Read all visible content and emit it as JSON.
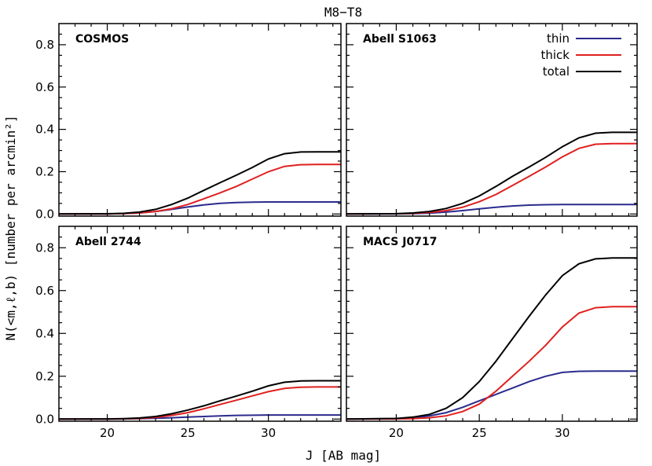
{
  "figure": {
    "title": "M8−T8",
    "xlabel": "J [AB mag]",
    "ylabel": "N(<m,ℓ,b) [number per arcmin²]"
  },
  "colors": {
    "thin": "#2b2b8f",
    "thick": "#e02020",
    "total": "#000000"
  },
  "chart_data": [
    {
      "type": "line",
      "title": "COSMOS",
      "xlim": [
        17,
        34.5
      ],
      "ylim": [
        -0.01,
        0.9
      ],
      "xticks": [
        20,
        25,
        30
      ],
      "yticks": [
        0.0,
        0.2,
        0.4,
        0.6,
        0.8
      ],
      "series": [
        {
          "name": "thin",
          "x": [
            17,
            20,
            21,
            22,
            23,
            24,
            25,
            26,
            27,
            28,
            29,
            30,
            31,
            32,
            33,
            34.5
          ],
          "y": [
            0,
            0.0005,
            0.002,
            0.005,
            0.012,
            0.022,
            0.033,
            0.043,
            0.05,
            0.054,
            0.056,
            0.057,
            0.057,
            0.057,
            0.057,
            0.057
          ]
        },
        {
          "name": "thick",
          "x": [
            17,
            20,
            21,
            22,
            23,
            24,
            25,
            26,
            27,
            28,
            29,
            30,
            31,
            32,
            33,
            34.5
          ],
          "y": [
            0,
            0.0005,
            0.002,
            0.005,
            0.012,
            0.025,
            0.045,
            0.072,
            0.1,
            0.13,
            0.165,
            0.2,
            0.225,
            0.233,
            0.234,
            0.234
          ]
        },
        {
          "name": "total",
          "x": [
            17,
            20,
            21,
            22,
            23,
            24,
            25,
            26,
            27,
            28,
            29,
            30,
            31,
            32,
            33,
            34.5
          ],
          "y": [
            0,
            0.001,
            0.003,
            0.009,
            0.022,
            0.045,
            0.075,
            0.112,
            0.148,
            0.183,
            0.22,
            0.26,
            0.285,
            0.293,
            0.294,
            0.294
          ]
        }
      ]
    },
    {
      "type": "line",
      "title": "Abell S1063",
      "xlim": [
        17,
        34.5
      ],
      "ylim": [
        -0.01,
        0.9
      ],
      "xticks": [
        20,
        25,
        30
      ],
      "yticks": [
        0.0,
        0.2,
        0.4,
        0.6,
        0.8
      ],
      "legend": {
        "position": "top-right",
        "entries": [
          "thin",
          "thick",
          "total"
        ]
      },
      "series": [
        {
          "name": "thin",
          "x": [
            17,
            20,
            21,
            22,
            23,
            24,
            25,
            26,
            27,
            28,
            29,
            30,
            31,
            32,
            33,
            34.5
          ],
          "y": [
            0,
            0.0004,
            0.0015,
            0.004,
            0.009,
            0.016,
            0.024,
            0.032,
            0.038,
            0.042,
            0.044,
            0.045,
            0.045,
            0.045,
            0.045,
            0.045
          ]
        },
        {
          "name": "thick",
          "x": [
            17,
            20,
            21,
            22,
            23,
            24,
            25,
            26,
            27,
            28,
            29,
            30,
            31,
            32,
            33,
            34.5
          ],
          "y": [
            0,
            0.001,
            0.003,
            0.007,
            0.016,
            0.032,
            0.058,
            0.092,
            0.135,
            0.178,
            0.222,
            0.27,
            0.31,
            0.33,
            0.333,
            0.333
          ]
        },
        {
          "name": "total",
          "x": [
            17,
            20,
            21,
            22,
            23,
            24,
            25,
            26,
            27,
            28,
            29,
            30,
            31,
            32,
            33,
            34.5
          ],
          "y": [
            0,
            0.0015,
            0.005,
            0.012,
            0.026,
            0.05,
            0.085,
            0.13,
            0.178,
            0.222,
            0.268,
            0.318,
            0.36,
            0.382,
            0.386,
            0.386
          ]
        }
      ]
    },
    {
      "type": "line",
      "title": "Abell 2744",
      "xlim": [
        17,
        34.5
      ],
      "ylim": [
        -0.01,
        0.9
      ],
      "xticks": [
        20,
        25,
        30
      ],
      "yticks": [
        0.0,
        0.2,
        0.4,
        0.6,
        0.8
      ],
      "series": [
        {
          "name": "thin",
          "x": [
            17,
            20,
            21,
            22,
            23,
            24,
            25,
            26,
            27,
            28,
            29,
            30,
            31,
            32,
            33,
            34.5
          ],
          "y": [
            0,
            0.0002,
            0.0007,
            0.0017,
            0.0035,
            0.006,
            0.009,
            0.012,
            0.015,
            0.017,
            0.018,
            0.019,
            0.019,
            0.019,
            0.019,
            0.019
          ]
        },
        {
          "name": "thick",
          "x": [
            17,
            20,
            21,
            22,
            23,
            24,
            25,
            26,
            27,
            28,
            29,
            30,
            31,
            32,
            33,
            34.5
          ],
          "y": [
            0,
            0.0003,
            0.001,
            0.003,
            0.008,
            0.017,
            0.03,
            0.048,
            0.068,
            0.088,
            0.108,
            0.128,
            0.143,
            0.149,
            0.15,
            0.15
          ]
        },
        {
          "name": "total",
          "x": [
            17,
            20,
            21,
            22,
            23,
            24,
            25,
            26,
            27,
            28,
            29,
            30,
            31,
            32,
            33,
            34.5
          ],
          "y": [
            0,
            0.0005,
            0.002,
            0.005,
            0.012,
            0.025,
            0.042,
            0.062,
            0.085,
            0.107,
            0.13,
            0.155,
            0.172,
            0.178,
            0.179,
            0.179
          ]
        }
      ]
    },
    {
      "type": "line",
      "title": "MACS J0717",
      "xlim": [
        17,
        34.5
      ],
      "ylim": [
        -0.01,
        0.9
      ],
      "xticks": [
        20,
        25,
        30
      ],
      "yticks": [
        0.0,
        0.2,
        0.4,
        0.6,
        0.8
      ],
      "series": [
        {
          "name": "thin",
          "x": [
            17,
            20,
            21,
            22,
            23,
            24,
            25,
            26,
            27,
            28,
            29,
            30,
            31,
            32,
            33,
            34.5
          ],
          "y": [
            0,
            0.002,
            0.006,
            0.015,
            0.03,
            0.055,
            0.085,
            0.115,
            0.145,
            0.175,
            0.2,
            0.218,
            0.223,
            0.224,
            0.224,
            0.224
          ]
        },
        {
          "name": "thick",
          "x": [
            17,
            20,
            21,
            22,
            23,
            24,
            25,
            26,
            27,
            28,
            29,
            30,
            31,
            32,
            33,
            34.5
          ],
          "y": [
            0,
            0.0005,
            0.002,
            0.006,
            0.015,
            0.035,
            0.07,
            0.13,
            0.2,
            0.27,
            0.345,
            0.43,
            0.495,
            0.52,
            0.525,
            0.525
          ]
        },
        {
          "name": "total",
          "x": [
            17,
            20,
            21,
            22,
            23,
            24,
            25,
            26,
            27,
            28,
            29,
            30,
            31,
            32,
            33,
            34.5
          ],
          "y": [
            0,
            0.003,
            0.009,
            0.022,
            0.05,
            0.1,
            0.175,
            0.27,
            0.375,
            0.48,
            0.58,
            0.67,
            0.725,
            0.748,
            0.752,
            0.752
          ]
        }
      ]
    }
  ]
}
